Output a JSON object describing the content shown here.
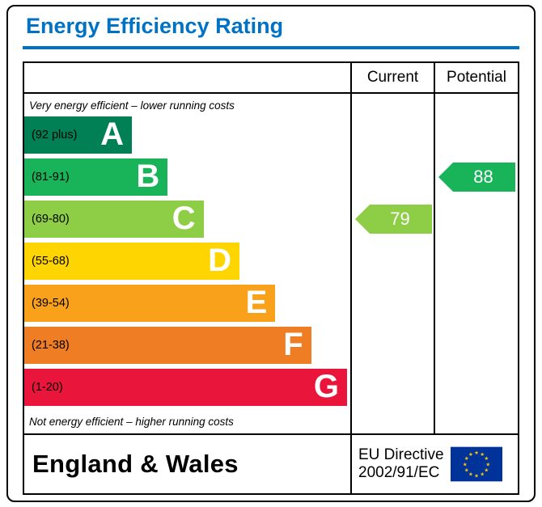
{
  "title": "Energy Efficiency Rating",
  "colors": {
    "title_blue": "#0072c6",
    "border": "#000000",
    "eu_blue": "#003399",
    "eu_yellow": "#ffcc00"
  },
  "table": {
    "current_header": "Current",
    "potential_header": "Potential",
    "top_note": "Very energy efficient – lower running costs",
    "bottom_note": "Not energy efficient – higher running costs"
  },
  "bands": [
    {
      "letter": "A",
      "range": "(92 plus)",
      "color": "#008054",
      "width_pct": 33
    },
    {
      "letter": "B",
      "range": "(81-91)",
      "color": "#19b459",
      "width_pct": 44
    },
    {
      "letter": "C",
      "range": "(69-80)",
      "color": "#8dce46",
      "width_pct": 55
    },
    {
      "letter": "D",
      "range": "(55-68)",
      "color": "#ffd500",
      "width_pct": 66
    },
    {
      "letter": "E",
      "range": "(39-54)",
      "color": "#f9a11b",
      "width_pct": 77
    },
    {
      "letter": "F",
      "range": "(21-38)",
      "color": "#ef7d23",
      "width_pct": 88
    },
    {
      "letter": "G",
      "range": "(1-20)",
      "color": "#e9153b",
      "width_pct": 99
    }
  ],
  "ratings": {
    "current": {
      "value": "79",
      "band": "C",
      "color": "#8dce46"
    },
    "potential": {
      "value": "88",
      "band": "B",
      "color": "#19b459"
    }
  },
  "footer": {
    "region": "England & Wales",
    "directive_line1": "EU Directive",
    "directive_line2": "2002/91/EC"
  },
  "chart_data": {
    "type": "bar",
    "title": "Energy Efficiency Rating",
    "categories": [
      "A (92 plus)",
      "B (81-91)",
      "C (69-80)",
      "D (55-68)",
      "E (39-54)",
      "F (21-38)",
      "G (1-20)"
    ],
    "band_ranges": [
      [
        92,
        100
      ],
      [
        81,
        91
      ],
      [
        69,
        80
      ],
      [
        55,
        68
      ],
      [
        39,
        54
      ],
      [
        21,
        38
      ],
      [
        1,
        20
      ]
    ],
    "band_bar_width_pct": [
      33,
      44,
      55,
      66,
      77,
      88,
      99
    ],
    "series": [
      {
        "name": "Current",
        "value": 79,
        "band": "C"
      },
      {
        "name": "Potential",
        "value": 88,
        "band": "B"
      }
    ],
    "top_note": "Very energy efficient – lower running costs",
    "bottom_note": "Not energy efficient – higher running costs",
    "region": "England & Wales",
    "directive": "EU Directive 2002/91/EC",
    "legend_position": "none",
    "grid": false
  }
}
